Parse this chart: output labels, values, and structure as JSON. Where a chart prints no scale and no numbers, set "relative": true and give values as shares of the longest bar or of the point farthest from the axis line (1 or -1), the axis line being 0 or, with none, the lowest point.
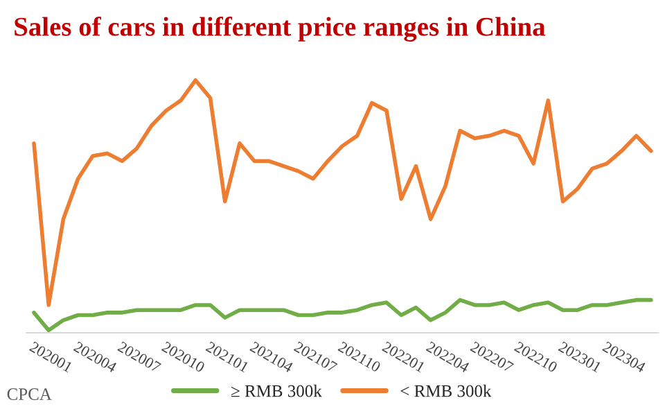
{
  "chart_data": {
    "type": "line",
    "title": "Sales of cars in different price ranges in China",
    "relative": true,
    "legend": "bottom",
    "marker": "none",
    "line_style": "solid",
    "annotations": [
      "CPCA"
    ],
    "categories": [
      "202001",
      null,
      null,
      "202004",
      null,
      null,
      "202007",
      null,
      null,
      "202010",
      null,
      null,
      "202101",
      null,
      null,
      "202104",
      null,
      null,
      "202107",
      null,
      null,
      "202110",
      null,
      null,
      "202201",
      null,
      null,
      "202204",
      null,
      null,
      "202207",
      null,
      null,
      "202210",
      null,
      null,
      "202301",
      null,
      null,
      "202304",
      null,
      null,
      null
    ],
    "series": [
      {
        "name": "≥ RMB 300k",
        "color": "#70ad47",
        "values": [
          0.08,
          0.01,
          0.05,
          0.07,
          0.07,
          0.08,
          0.08,
          0.09,
          0.09,
          0.09,
          0.09,
          0.11,
          0.11,
          0.06,
          0.09,
          0.09,
          0.09,
          0.09,
          0.07,
          0.07,
          0.08,
          0.08,
          0.09,
          0.11,
          0.12,
          0.07,
          0.1,
          0.05,
          0.08,
          0.13,
          0.11,
          0.11,
          0.12,
          0.09,
          0.11,
          0.12,
          0.09,
          0.09,
          0.11,
          0.11,
          0.12,
          0.13,
          0.13
        ]
      },
      {
        "name": "< RMB 300k",
        "color": "#ed7d31",
        "values": [
          0.75,
          0.11,
          0.45,
          0.61,
          0.7,
          0.71,
          0.68,
          0.73,
          0.82,
          0.88,
          0.92,
          1,
          0.93,
          0.52,
          0.75,
          0.68,
          0.68,
          0.66,
          0.64,
          0.61,
          0.68,
          0.74,
          0.78,
          0.91,
          0.88,
          0.53,
          0.66,
          0.45,
          0.58,
          0.8,
          0.77,
          0.78,
          0.8,
          0.78,
          0.67,
          0.92,
          0.52,
          0.57,
          0.65,
          0.67,
          0.72,
          0.78,
          0.72
        ]
      }
    ]
  }
}
